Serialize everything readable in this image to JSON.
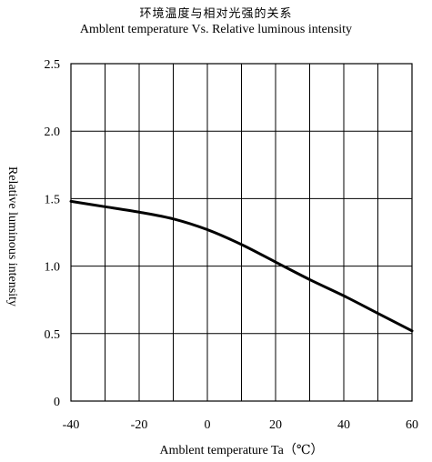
{
  "chart_data": {
    "type": "line",
    "title": "环境温度与相对光强的关系",
    "subtitle": "Amblent temperature  Vs.  Relative luminous intensity",
    "xlabel": "Amblent temperature Ta（℃）",
    "ylabel": "Relative luminous intensity",
    "xlim": [
      -40,
      60
    ],
    "ylim": [
      0,
      2.5
    ],
    "xticks": [
      -40,
      -20,
      0,
      20,
      40,
      60
    ],
    "xtick_labels": [
      "-40",
      "-20",
      "0",
      "20",
      "40",
      "60"
    ],
    "yticks": [
      0,
      0.5,
      1.0,
      1.5,
      2.0,
      2.5
    ],
    "ytick_labels": [
      "0",
      "0.5",
      "1.0",
      "1.5",
      "2.0",
      "2.5"
    ],
    "x_grid_step": 10,
    "y_grid_step": 0.5,
    "grid": true,
    "series": [
      {
        "x": [
          -40,
          -30,
          -20,
          -10,
          0,
          10,
          20,
          30,
          40,
          50,
          60
        ],
        "y": [
          1.48,
          1.44,
          1.4,
          1.35,
          1.27,
          1.16,
          1.03,
          0.9,
          0.78,
          0.65,
          0.52
        ],
        "color": "#000000"
      }
    ]
  }
}
